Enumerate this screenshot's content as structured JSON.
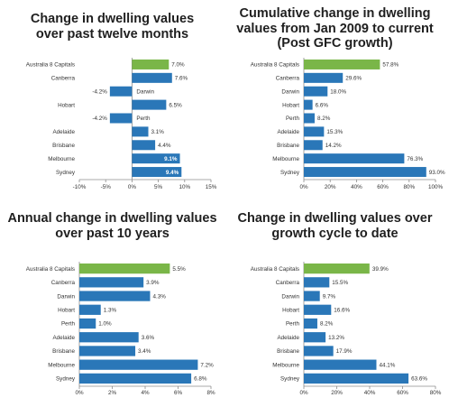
{
  "colors": {
    "highlight": "#7ab648",
    "bar": "#2a77b8",
    "axis": "#8c8c8c",
    "label": "#333333"
  },
  "chart_data": [
    {
      "type": "bar",
      "orientation": "horizontal",
      "title": "Change in dwelling values over past twelve months",
      "categories": [
        "Australia  8 Capitals",
        "Canberra",
        "Darwin",
        "Hobart",
        "Perth",
        "Adelaide",
        "Brisbane",
        "Melbourne",
        "Sydney"
      ],
      "values": [
        7.0,
        7.6,
        -4.2,
        6.5,
        -4.2,
        3.1,
        4.4,
        9.1,
        9.4
      ],
      "value_labels": [
        "7.0%",
        "7.6%",
        "-4.2%",
        "6.5%",
        "-4.2%",
        "3.1%",
        "4.4%",
        "9.1%",
        "9.4%"
      ],
      "highlight_index": 0,
      "xlim": [
        -10,
        15
      ],
      "xticks": [
        -10,
        -5,
        0,
        5,
        10,
        15
      ],
      "xtick_labels": [
        "-10%",
        "-5%",
        "0%",
        "5%",
        "10%",
        "15%"
      ],
      "grid": false
    },
    {
      "type": "bar",
      "orientation": "horizontal",
      "title": "Cumulative change in dwelling values from Jan 2009 to current (Post GFC growth)",
      "categories": [
        "Australia  8 Capitals",
        "Canberra",
        "Darwin",
        "Hobart",
        "Perth",
        "Adelaide",
        "Brisbane",
        "Melbourne",
        "Sydney"
      ],
      "values": [
        57.8,
        29.6,
        18.0,
        6.6,
        8.2,
        15.3,
        14.2,
        76.3,
        93.0
      ],
      "value_labels": [
        "57.8%",
        "29.6%",
        "18.0%",
        "6.6%",
        "8.2%",
        "15.3%",
        "14.2%",
        "76.3%",
        "93.0%"
      ],
      "highlight_index": 0,
      "xlim": [
        0,
        100
      ],
      "xticks": [
        0,
        20,
        40,
        60,
        80,
        100
      ],
      "xtick_labels": [
        "0%",
        "20%",
        "40%",
        "60%",
        "80%",
        "100%"
      ],
      "grid": false
    },
    {
      "type": "bar",
      "orientation": "horizontal",
      "title": "Annual change in dwelling values over past 10 years",
      "categories": [
        "Australia  8 Capitals",
        "Canberra",
        "Darwin",
        "Hobart",
        "Perth",
        "Adelaide",
        "Brisbane",
        "Melbourne",
        "Sydney"
      ],
      "values": [
        5.5,
        3.9,
        4.3,
        1.3,
        1.0,
        3.6,
        3.4,
        7.2,
        6.8
      ],
      "value_labels": [
        "5.5%",
        "3.9%",
        "4.3%",
        "1.3%",
        "1.0%",
        "3.6%",
        "3.4%",
        "7.2%",
        "6.8%"
      ],
      "highlight_index": 0,
      "xlim": [
        0,
        8
      ],
      "xticks": [
        0,
        2,
        4,
        6,
        8
      ],
      "xtick_labels": [
        "0%",
        "2%",
        "4%",
        "6%",
        "8%"
      ],
      "grid": false
    },
    {
      "type": "bar",
      "orientation": "horizontal",
      "title": "Change in dwelling values over growth cycle to date",
      "categories": [
        "Australia  8 Capitals",
        "Canberra",
        "Darwin",
        "Hobart",
        "Perth",
        "Adelaide",
        "Brisbane",
        "Melbourne",
        "Sydney"
      ],
      "values": [
        39.9,
        15.5,
        9.7,
        16.6,
        8.2,
        13.2,
        17.9,
        44.1,
        63.6
      ],
      "value_labels": [
        "39.9%",
        "15.5%",
        "9.7%",
        "16.6%",
        "8.2%",
        "13.2%",
        "17.9%",
        "44.1%",
        "63.6%"
      ],
      "highlight_index": 0,
      "xlim": [
        0,
        80
      ],
      "xticks": [
        0,
        20,
        40,
        60,
        80
      ],
      "xtick_labels": [
        "0%",
        "20%",
        "40%",
        "60%",
        "80%"
      ],
      "grid": false
    }
  ]
}
